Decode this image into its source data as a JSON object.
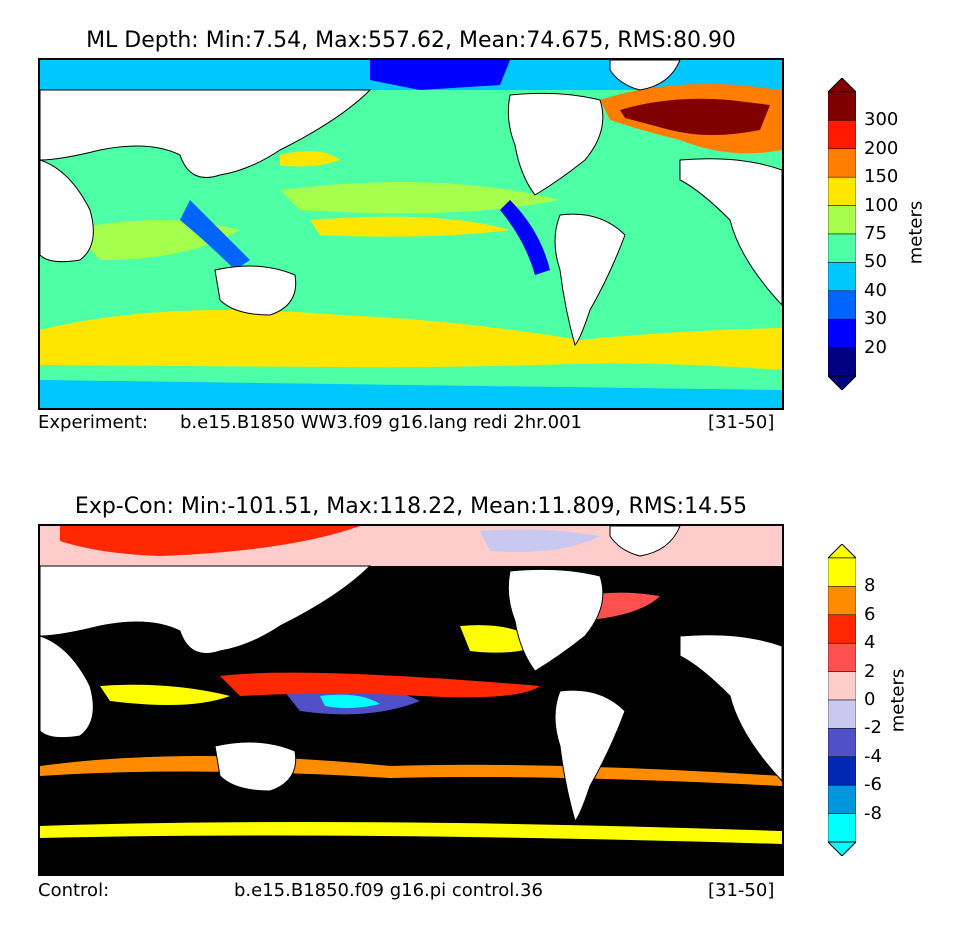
{
  "panel1": {
    "title": "ML Depth: Min:7.54, Max:557.62, Mean:74.675, RMS:80.90",
    "caption_label": "Experiment:",
    "caption_case": "b.e15.B1850 WW3.f09 g16.lang redi 2hr.001",
    "caption_years": "[31-50]",
    "units": "meters",
    "ticks": [
      "300",
      "200",
      "150",
      "100",
      "75",
      "50",
      "40",
      "30",
      "20"
    ],
    "colors": [
      "#000080",
      "#0000ff",
      "#0064ff",
      "#00c8ff",
      "#4dffa5",
      "#a6ff4d",
      "#ffe600",
      "#ff7d00",
      "#ff1a00",
      "#800000"
    ],
    "ocean_base": "#4dffa5"
  },
  "panel2": {
    "title": "Exp-Con: Min:-101.51, Max:118.22, Mean:11.809, RMS:14.55",
    "caption_label": "Control:",
    "caption_case": "b.e15.B1850.f09 g16.pi control.36",
    "caption_years": "[31-50]",
    "units": "meters",
    "ticks": [
      "8",
      "6",
      "4",
      "2",
      "0",
      "-2",
      "-4",
      "-6",
      "-8"
    ],
    "colors": [
      "#00ffff",
      "#0096dc",
      "#0028b4",
      "#5050c8",
      "#c8c8f0",
      "#ffcccc",
      "#ff5050",
      "#ff2800",
      "#ff8c00",
      "#ffff00"
    ],
    "ocean_base": "#000000"
  }
}
